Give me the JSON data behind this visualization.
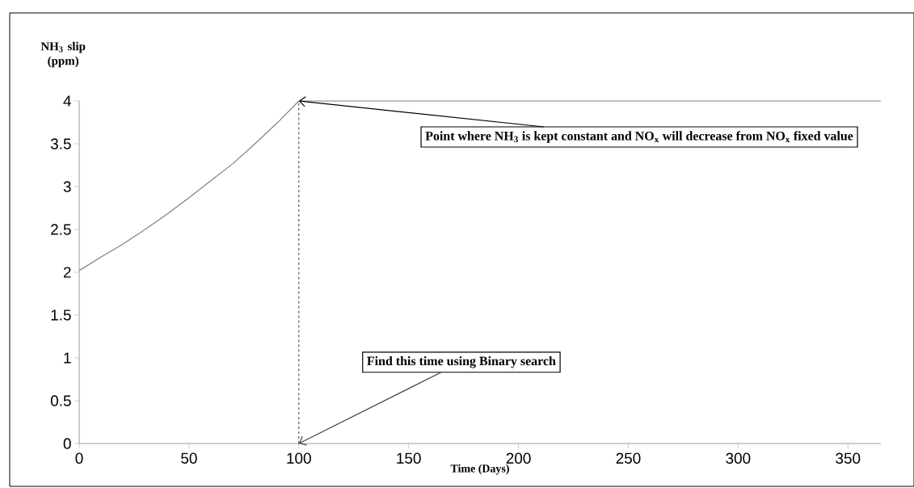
{
  "chart_data": {
    "type": "line",
    "xlabel": "Time (Days)",
    "ylabel": "NH$_{3}$ slip (ppm)",
    "series": [
      {
        "color": "#808080",
        "x": [
          0,
          10,
          20,
          30,
          40,
          50,
          60,
          70,
          80,
          90,
          100,
          365
        ],
        "values": [
          2.02,
          2.18,
          2.33,
          2.5,
          2.68,
          2.87,
          3.07,
          3.27,
          3.5,
          3.74,
          4.0,
          4.0
        ]
      }
    ],
    "xlim": [
      0,
      365
    ],
    "ylim": [
      0,
      4
    ],
    "xticks": [
      0,
      50,
      100,
      150,
      200,
      250,
      300,
      350
    ],
    "yticks": [
      0,
      0.5,
      1,
      1.5,
      2,
      2.5,
      3,
      3.5,
      4
    ],
    "ref_lines": [
      {
        "axis": "x",
        "value": 100,
        "color": "#000000",
        "line_style": "dashed"
      }
    ],
    "annotations": [
      {
        "text": "Point where NH$_{3}$ is kept constant and NO$_{x}$ will decrease from NO$_{x}$ fixed value",
        "x": 100,
        "y": 4
      },
      {
        "text": "Find this time using Binary search",
        "x": 100,
        "y": 0
      }
    ],
    "grid": false,
    "marker": "none",
    "line_style": "solid"
  }
}
